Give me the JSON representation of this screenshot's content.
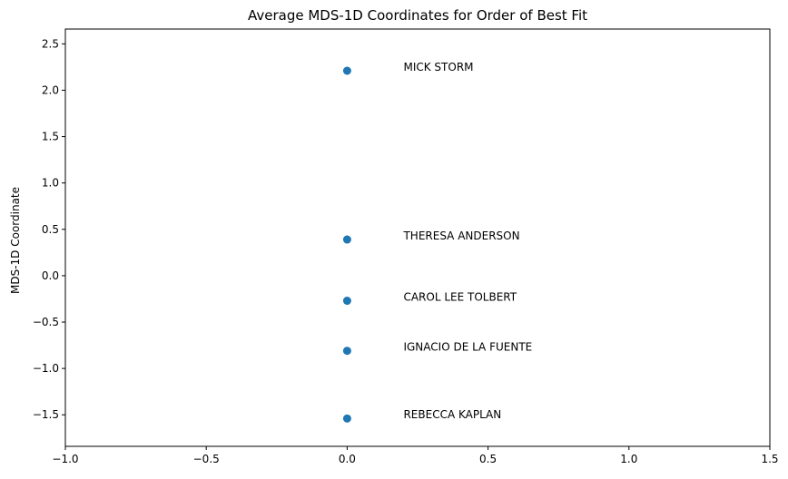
{
  "chart_data": {
    "type": "scatter",
    "title": "Average MDS-1D Coordinates for Order of Best Fit",
    "xlabel": "",
    "ylabel": "MDS-1D Coordinate",
    "xlim": [
      -1.0,
      1.5
    ],
    "ylim": [
      -1.84,
      2.66
    ],
    "xticks": [
      -1.0,
      -0.5,
      0.0,
      0.5,
      1.0,
      1.5
    ],
    "xtick_labels": [
      "−1.0",
      "−0.5",
      "0.0",
      "0.5",
      "1.0",
      "1.5"
    ],
    "yticks": [
      -1.5,
      -1.0,
      -0.5,
      0.0,
      0.5,
      1.0,
      1.5,
      2.0,
      2.5
    ],
    "ytick_labels": [
      "−1.5",
      "−1.0",
      "−0.5",
      "0.0",
      "0.5",
      "1.0",
      "1.5",
      "2.0",
      "2.5"
    ],
    "grid": false,
    "color": "#1f77b4",
    "points": [
      {
        "x": 0.0,
        "y": 2.21,
        "label": "MICK STORM"
      },
      {
        "x": 0.0,
        "y": 0.39,
        "label": "THERESA ANDERSON"
      },
      {
        "x": 0.0,
        "y": -0.27,
        "label": "CAROL LEE TOLBERT"
      },
      {
        "x": 0.0,
        "y": -0.81,
        "label": "IGNACIO DE LA FUENTE"
      },
      {
        "x": 0.0,
        "y": -1.54,
        "label": "REBECCA KAPLAN"
      }
    ],
    "label_x": 0.2,
    "label_dy": 0.04
  }
}
